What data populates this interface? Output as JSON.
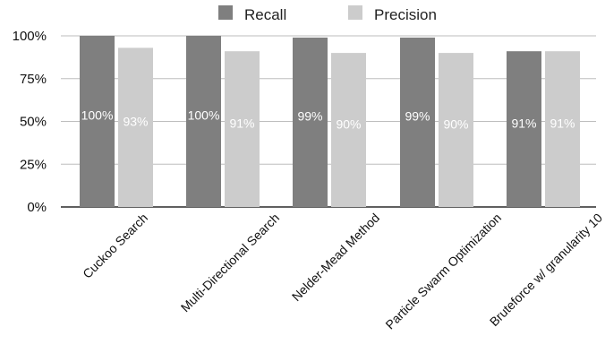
{
  "chart_data": {
    "type": "bar",
    "categories": [
      "Cuckoo Search",
      "Multi-Directional Search",
      "Nelder-Mead Method",
      "Particle Swarm Optimization",
      "Bruteforce w/ granularity 10"
    ],
    "series": [
      {
        "name": "Recall",
        "color": "#7f7f7f",
        "values": [
          100,
          100,
          99,
          99,
          91
        ],
        "labels": [
          "100%",
          "100%",
          "99%",
          "99%",
          "91%"
        ]
      },
      {
        "name": "Precision",
        "color": "#cccccc",
        "values": [
          93,
          91,
          90,
          90,
          91
        ],
        "labels": [
          "93%",
          "91%",
          "90%",
          "90%",
          "91%"
        ]
      }
    ],
    "ylim": [
      0,
      100
    ],
    "yticks": [
      "0%",
      "25%",
      "50%",
      "75%",
      "100%"
    ],
    "ytick_values": [
      0,
      25,
      50,
      75,
      100
    ],
    "grid": true,
    "legend_position": "top"
  }
}
